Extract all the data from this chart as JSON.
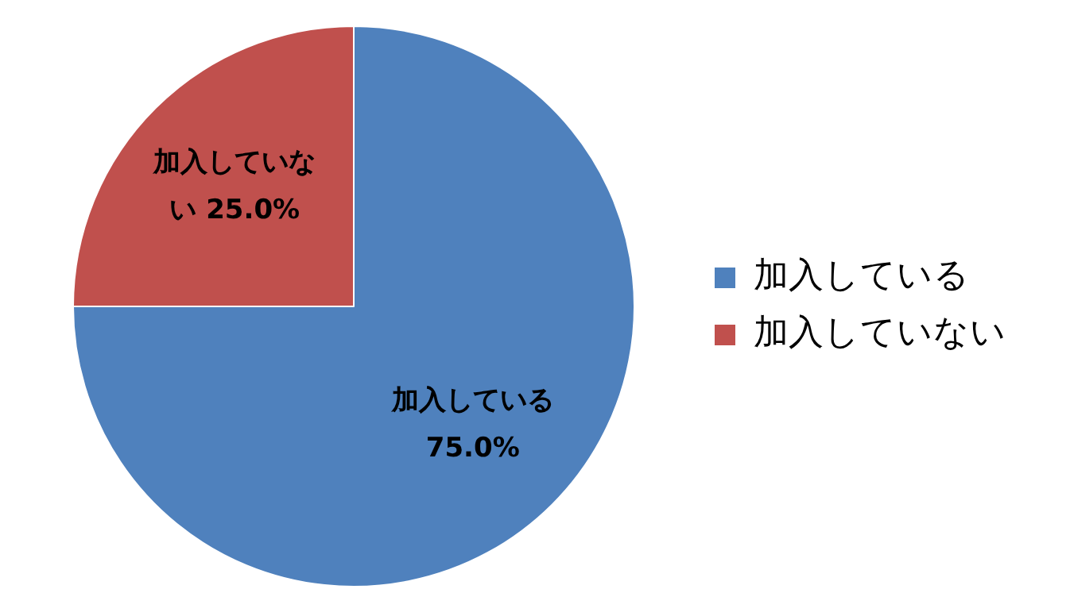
{
  "chart_data": {
    "type": "pie",
    "categories": [
      "加入している",
      "加入していない"
    ],
    "values": [
      75,
      25
    ],
    "colors": [
      "#4f81bd",
      "#c0504d"
    ],
    "value_labels": [
      "75.0%",
      "25.0%"
    ],
    "legend": "right"
  }
}
